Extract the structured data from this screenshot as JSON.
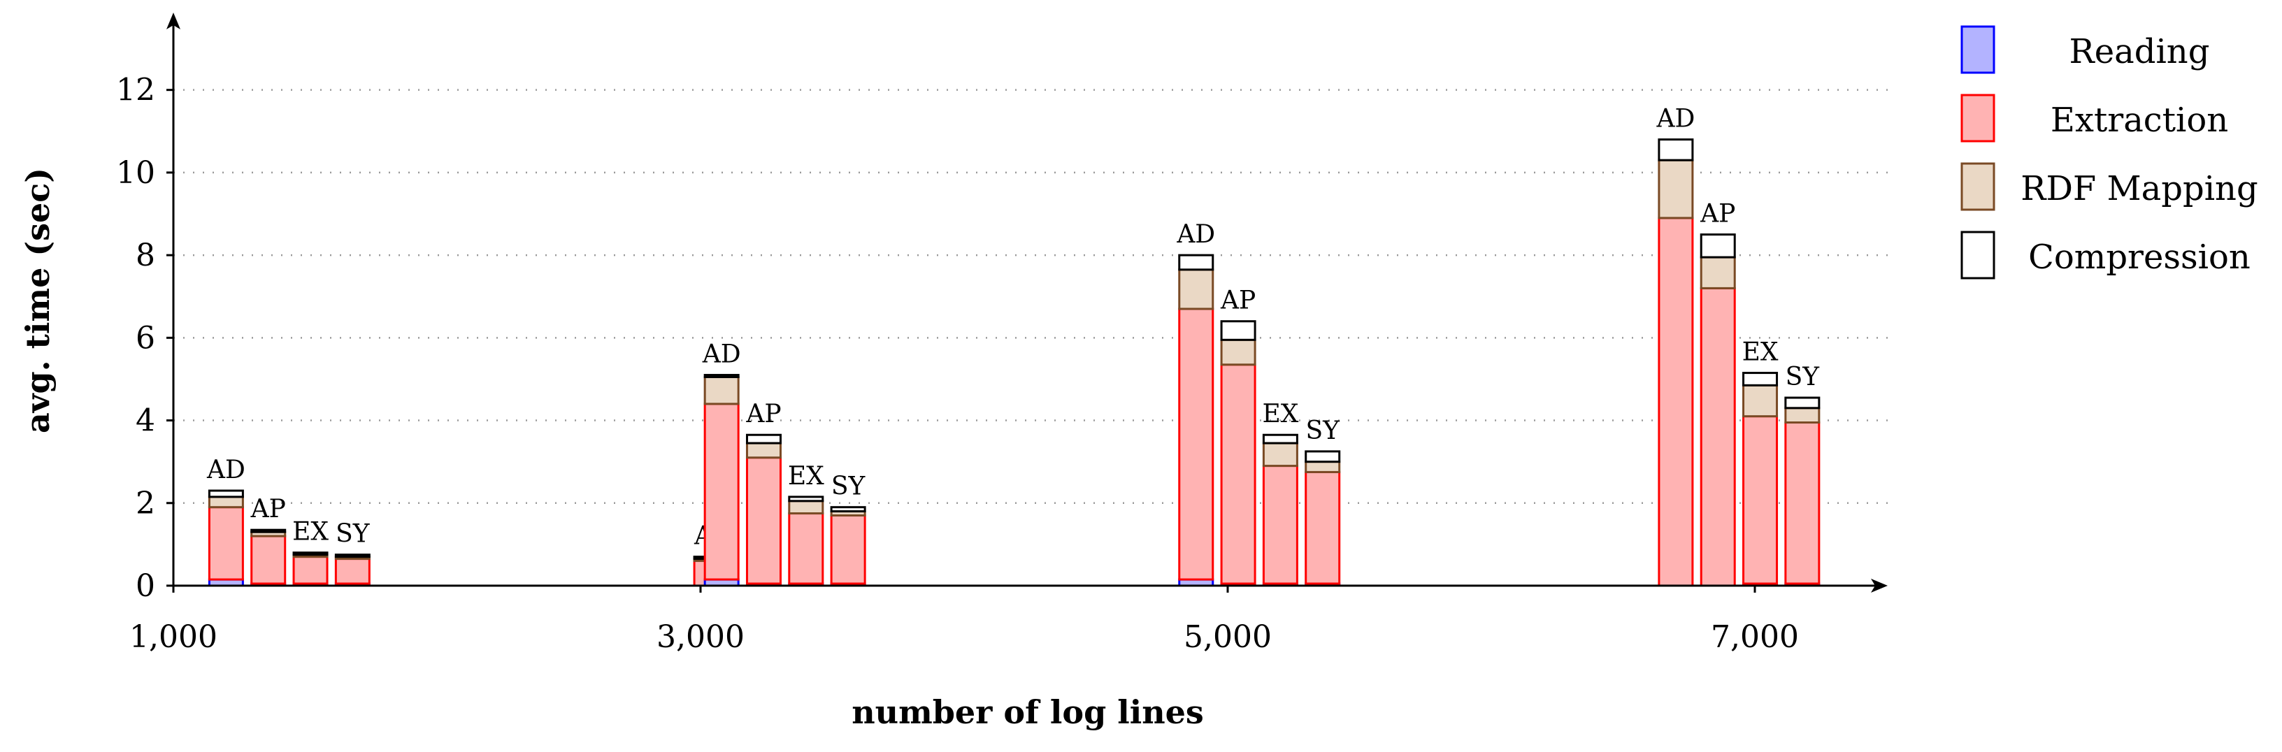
{
  "chart_data": {
    "type": "bar",
    "stacked": true,
    "xlabel": "number of log lines",
    "ylabel": "avg. time (sec)",
    "xlim": [
      1000,
      7500
    ],
    "ylim": [
      0,
      13.5
    ],
    "x_ticks": [
      1000,
      3000,
      5000,
      7000
    ],
    "x_tick_labels": [
      "1,000",
      "3,000",
      "5,000",
      "7,000"
    ],
    "y_ticks": [
      0,
      2,
      4,
      6,
      8,
      10,
      12
    ],
    "y_tick_labels": [
      "0",
      "2",
      "4",
      "6",
      "8",
      "10",
      "12"
    ],
    "grid": "horizontal dotted",
    "legend_position": "top-right",
    "series": [
      {
        "name": "Reading",
        "color": "#0000ff",
        "fill": "#b3b3ff"
      },
      {
        "name": "Extraction",
        "color": "#ff0000",
        "fill": "#ffb3b3"
      },
      {
        "name": "RDF Mapping",
        "color": "#7a4a25",
        "fill": "#ead8c5"
      },
      {
        "name": "Compression",
        "color": "#000000",
        "fill": "#ffffff"
      }
    ],
    "groups": [
      {
        "x": 1000,
        "bars": [
          {
            "label": "AD",
            "x": 1200,
            "values": [
              0.15,
              1.75,
              0.25,
              0.15
            ]
          },
          {
            "label": "AP",
            "x": 1360,
            "values": [
              0.05,
              1.15,
              0.1,
              0.05
            ]
          },
          {
            "label": "EX",
            "x": 1520,
            "values": [
              0.05,
              0.65,
              0.05,
              0.05
            ]
          },
          {
            "label": "SY",
            "x": 1680,
            "values": [
              0.05,
              0.6,
              0.05,
              0.05
            ]
          }
        ]
      },
      {
        "x": 3000,
        "bars": [
          {
            "label": "AT",
            "x": 3040,
            "values": [
              0.0,
              0.6,
              0.05,
              0.05
            ]
          },
          {
            "label": "AD",
            "x": 3080,
            "values": [
              0.15,
              4.25,
              0.65,
              0.05
            ]
          },
          {
            "label": "AP",
            "x": 3240,
            "values": [
              0.05,
              3.05,
              0.35,
              0.2
            ]
          },
          {
            "label": "EX",
            "x": 3400,
            "values": [
              0.05,
              1.7,
              0.3,
              0.1
            ]
          },
          {
            "label": "SY",
            "x": 3560,
            "values": [
              0.05,
              1.65,
              0.1,
              0.1
            ]
          }
        ]
      },
      {
        "x": 5000,
        "bars": [
          {
            "label": "AD",
            "x": 4880,
            "values": [
              0.15,
              6.55,
              0.95,
              0.35
            ]
          },
          {
            "label": "AP",
            "x": 5040,
            "values": [
              0.05,
              5.3,
              0.6,
              0.45
            ]
          },
          {
            "label": "EX",
            "x": 5200,
            "values": [
              0.05,
              2.85,
              0.55,
              0.2
            ]
          },
          {
            "label": "SY",
            "x": 5360,
            "values": [
              0.05,
              2.7,
              0.25,
              0.25
            ]
          }
        ]
      },
      {
        "x": 7000,
        "bars": [
          {
            "label": "AD",
            "x": 6700,
            "values": [
              0.0,
              8.9,
              1.4,
              0.5
            ]
          },
          {
            "label": "AP",
            "x": 6860,
            "values": [
              0.0,
              7.2,
              0.75,
              0.55
            ]
          },
          {
            "label": "EX",
            "x": 7020,
            "values": [
              0.05,
              4.05,
              0.75,
              0.3
            ]
          },
          {
            "label": "SY",
            "x": 7180,
            "values": [
              0.05,
              3.9,
              0.35,
              0.25
            ]
          }
        ]
      }
    ]
  }
}
